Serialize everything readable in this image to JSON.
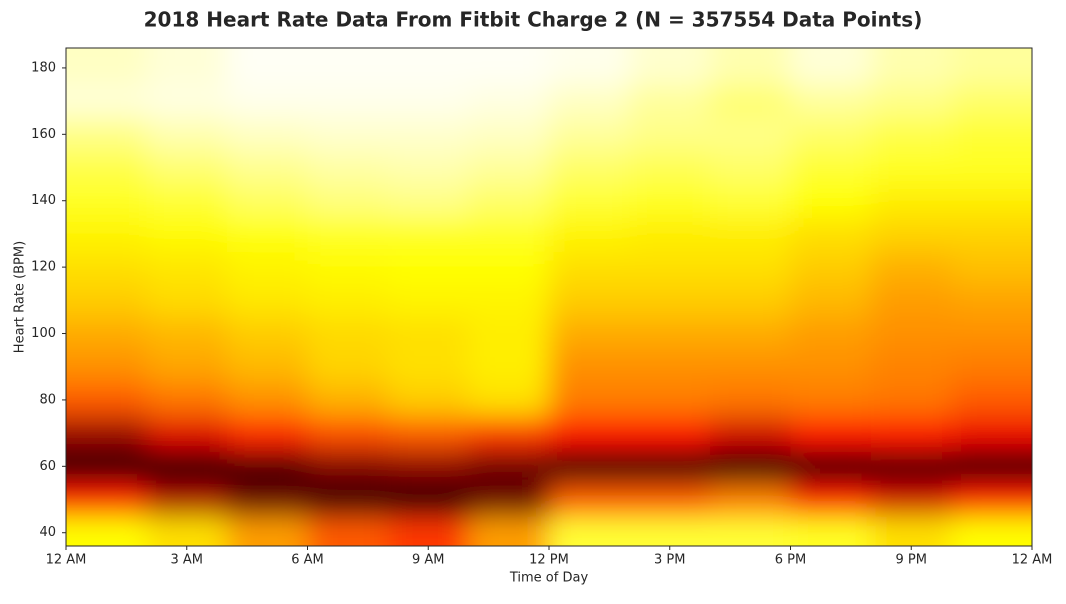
{
  "chart_data": {
    "type": "heatmap",
    "title": "2018 Heart Rate Data From Fitbit Charge 2 (N = 357554 Data Points)",
    "x_label": "Time of Day",
    "y_label": "Heart Rate (BPM)",
    "x_bins": [
      0,
      2,
      4,
      6,
      8,
      10,
      12,
      14,
      16,
      18,
      20,
      22,
      24
    ],
    "y_bins": [
      35,
      45,
      55,
      65,
      75,
      85,
      95,
      105,
      115,
      125,
      135,
      145,
      155,
      165,
      175,
      185
    ],
    "z": [
      [
        0.25,
        0.3,
        0.4,
        0.5,
        0.55,
        0.4,
        0.2,
        0.2,
        0.2,
        0.22,
        0.3,
        0.25
      ],
      [
        0.6,
        0.75,
        0.85,
        0.92,
        0.95,
        0.85,
        0.5,
        0.5,
        0.45,
        0.6,
        0.7,
        0.6
      ],
      [
        0.95,
        0.95,
        0.9,
        0.82,
        0.8,
        0.85,
        0.95,
        0.95,
        0.95,
        0.95,
        0.9,
        0.95
      ],
      [
        0.78,
        0.68,
        0.58,
        0.52,
        0.5,
        0.55,
        0.62,
        0.62,
        0.7,
        0.62,
        0.6,
        0.66
      ],
      [
        0.5,
        0.46,
        0.42,
        0.37,
        0.33,
        0.3,
        0.45,
        0.45,
        0.46,
        0.45,
        0.46,
        0.5
      ],
      [
        0.42,
        0.39,
        0.36,
        0.32,
        0.3,
        0.28,
        0.42,
        0.42,
        0.42,
        0.42,
        0.44,
        0.45
      ],
      [
        0.38,
        0.36,
        0.33,
        0.31,
        0.3,
        0.28,
        0.38,
        0.38,
        0.38,
        0.4,
        0.42,
        0.42
      ],
      [
        0.33,
        0.31,
        0.29,
        0.28,
        0.27,
        0.27,
        0.33,
        0.33,
        0.33,
        0.36,
        0.4,
        0.39
      ],
      [
        0.3,
        0.29,
        0.27,
        0.26,
        0.25,
        0.25,
        0.3,
        0.3,
        0.3,
        0.33,
        0.37,
        0.35
      ],
      [
        0.27,
        0.26,
        0.24,
        0.22,
        0.22,
        0.22,
        0.27,
        0.28,
        0.28,
        0.3,
        0.32,
        0.32
      ],
      [
        0.22,
        0.2,
        0.16,
        0.13,
        0.12,
        0.15,
        0.2,
        0.22,
        0.2,
        0.25,
        0.28,
        0.28
      ],
      [
        0.18,
        0.14,
        0.11,
        0.09,
        0.08,
        0.1,
        0.15,
        0.17,
        0.15,
        0.2,
        0.22,
        0.22
      ],
      [
        0.12,
        0.08,
        0.06,
        0.05,
        0.05,
        0.06,
        0.1,
        0.12,
        0.12,
        0.15,
        0.18,
        0.2
      ],
      [
        0.04,
        0.03,
        0.02,
        0.02,
        0.02,
        0.03,
        0.06,
        0.1,
        0.14,
        0.1,
        0.12,
        0.15
      ],
      [
        0.06,
        0.04,
        0.01,
        0.01,
        0.01,
        0.01,
        0.02,
        0.05,
        0.08,
        0.04,
        0.08,
        0.1
      ]
    ],
    "colormap": "hot_r",
    "xlim": [
      0,
      24
    ],
    "xticks": [
      {
        "value": 0,
        "label": "12 AM"
      },
      {
        "value": 3,
        "label": "3 AM"
      },
      {
        "value": 6,
        "label": "6 AM"
      },
      {
        "value": 9,
        "label": "9 AM"
      },
      {
        "value": 12,
        "label": "12 PM"
      },
      {
        "value": 15,
        "label": "3 PM"
      },
      {
        "value": 18,
        "label": "6 PM"
      },
      {
        "value": 21,
        "label": "9 PM"
      },
      {
        "value": 24,
        "label": "12 AM"
      }
    ],
    "ylim": [
      36,
      186
    ],
    "yticks": [
      40,
      60,
      80,
      100,
      120,
      140,
      160,
      180
    ]
  }
}
